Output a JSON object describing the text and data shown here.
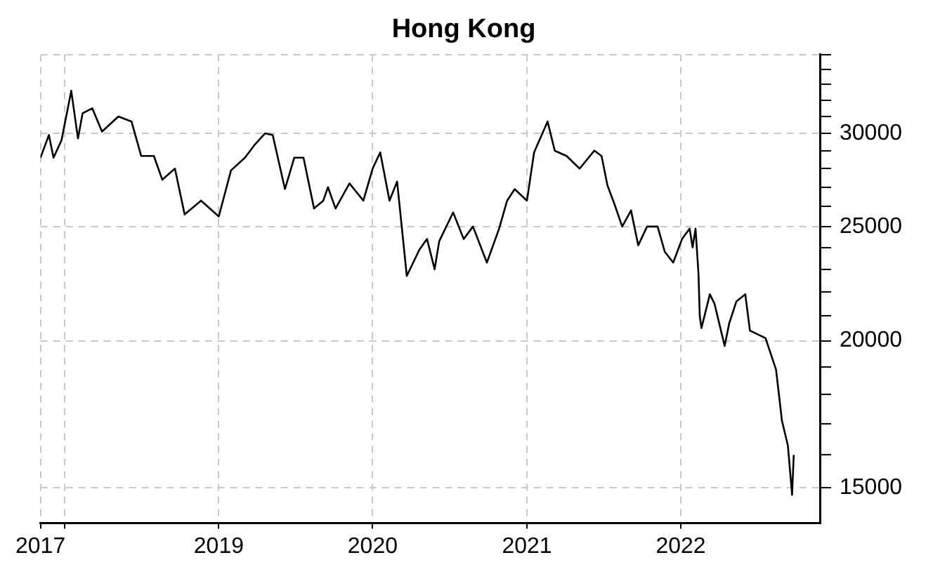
{
  "chart_data": {
    "type": "line",
    "title": "Hong Kong",
    "log": "y",
    "grid": true,
    "marker": "none",
    "line_style": "solid",
    "xlim": [
      "2017-11-04",
      "2022-11-27"
    ],
    "xticks": [
      {
        "value": "2017-11-04",
        "label": "2017"
      },
      {
        "value": "2018",
        "label": null
      },
      {
        "value": "2019",
        "label": "2019"
      },
      {
        "value": "2020",
        "label": "2020"
      },
      {
        "value": "2021",
        "label": "2021"
      },
      {
        "value": "2022",
        "label": "2022"
      }
    ],
    "ylim": [
      14000,
      35000
    ],
    "yticks": [
      15000,
      {
        "value": 16000,
        "label": null
      },
      {
        "value": 17000,
        "label": null
      },
      {
        "value": 18000,
        "label": null
      },
      {
        "value": 19000,
        "label": null
      },
      20000,
      {
        "value": 21000,
        "label": null
      },
      {
        "value": 22000,
        "label": null
      },
      {
        "value": 23000,
        "label": null
      },
      {
        "value": 24000,
        "label": null
      },
      25000,
      {
        "value": 26000,
        "label": null
      },
      {
        "value": 27000,
        "label": null
      },
      {
        "value": 28000,
        "label": null
      },
      {
        "value": 29000,
        "label": null
      },
      30000,
      {
        "value": 31000,
        "label": null
      },
      {
        "value": 32000,
        "label": null
      },
      {
        "value": 33000,
        "label": null
      },
      {
        "value": 34000,
        "label": null
      },
      {
        "value": 35000,
        "label": null
      }
    ],
    "series": [
      {
        "color": "#000000",
        "x": [
          "2017-11-04",
          "2017-11-24",
          "2017-12-05",
          "2017-12-24",
          "2018-01-16",
          "2018-02-01",
          "2018-02-12",
          "2018-03-07",
          "2018-03-30",
          "2018-05-08",
          "2018-06-08",
          "2018-07-01",
          "2018-07-31",
          "2018-08-20",
          "2018-09-19",
          "2018-10-12",
          "2018-11-20",
          "2019-01-01",
          "2019-01-30",
          "2019-03-04",
          "2019-03-26",
          "2019-04-21",
          "2019-05-09",
          "2019-06-07",
          "2019-06-29",
          "2019-07-21",
          "2019-08-15",
          "2019-09-06",
          "2019-09-17",
          "2019-10-05",
          "2019-11-07",
          "2019-12-10",
          "2020-01-01",
          "2020-01-19",
          "2020-02-10",
          "2020-02-28",
          "2020-03-22",
          "2020-04-21",
          "2020-05-09",
          "2020-05-27",
          "2020-06-07",
          "2020-07-10",
          "2020-08-04",
          "2020-08-26",
          "2020-09-28",
          "2020-10-27",
          "2020-11-15",
          "2020-12-03",
          "2021-01-01",
          "2021-01-18",
          "2021-02-19",
          "2021-03-08",
          "2021-04-05",
          "2021-05-06",
          "2021-06-10",
          "2021-06-27",
          "2021-07-11",
          "2021-07-28",
          "2021-08-15",
          "2021-09-05",
          "2021-09-22",
          "2021-10-13",
          "2021-11-07",
          "2021-11-24",
          "2021-12-14",
          "2022-01-04",
          "2022-01-22",
          "2022-01-29",
          "2022-02-05",
          "2022-02-12",
          "2022-02-15",
          "2022-02-19",
          "2022-03-11",
          "2022-03-22",
          "2022-04-15",
          "2022-04-26",
          "2022-05-13",
          "2022-06-03",
          "2022-06-14",
          "2022-07-21",
          "2022-08-15",
          "2022-08-25",
          "2022-08-29",
          "2022-09-12",
          "2022-09-22",
          "2022-09-26"
        ],
        "values": [
          28600,
          29900,
          28600,
          29600,
          32600,
          29700,
          31200,
          31500,
          30100,
          31000,
          30700,
          28700,
          28700,
          27400,
          28000,
          25600,
          26300,
          25500,
          27900,
          28600,
          29300,
          30000,
          29900,
          26900,
          28600,
          28600,
          25900,
          26300,
          27000,
          25900,
          27200,
          26300,
          28000,
          28900,
          26300,
          27300,
          22700,
          23900,
          24400,
          23000,
          24300,
          25700,
          24400,
          25000,
          23300,
          24900,
          26300,
          26900,
          26300,
          28900,
          30700,
          29000,
          28700,
          28000,
          29000,
          28700,
          27100,
          26100,
          25000,
          25800,
          24100,
          25000,
          25000,
          23800,
          23300,
          24400,
          24900,
          24000,
          24900,
          22800,
          21000,
          20500,
          21900,
          21500,
          19800,
          20700,
          21600,
          21900,
          20400,
          20100,
          18900,
          17600,
          17100,
          16300,
          14800,
          16000
        ]
      }
    ]
  }
}
